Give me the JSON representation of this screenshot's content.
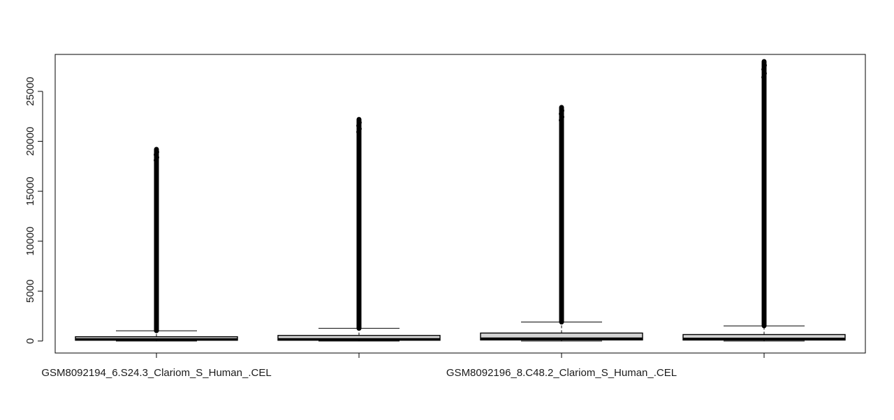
{
  "chart_data": {
    "type": "boxplot",
    "title": "",
    "xlabel": "",
    "ylabel": "",
    "ylim": [
      -1200,
      28700
    ],
    "yticks": [
      0,
      5000,
      10000,
      15000,
      20000,
      25000
    ],
    "ytick_labels": [
      "0",
      "5000",
      "10000",
      "15000",
      "20000",
      "25000"
    ],
    "x_labels_visible": [
      "GSM8092194_6.S24.3_Clariom_S_Human_.CEL",
      "",
      "GSM8092196_8.C48.2_Clariom_S_Human_.CEL",
      ""
    ],
    "grid": false,
    "legend": "none",
    "box_fill": "#d3d3d3",
    "line_color": "#000000",
    "boxes": [
      {
        "label": "GSM8092194_6.S24.3_Clariom_S_Human_.CEL",
        "whisker_low": 0,
        "q1": 80,
        "median": 180,
        "q3": 430,
        "whisker_high": 1030,
        "outlier_min": 1030,
        "outlier_max": 19200
      },
      {
        "label": "",
        "whisker_low": 0,
        "q1": 80,
        "median": 190,
        "q3": 560,
        "whisker_high": 1270,
        "outlier_min": 1270,
        "outlier_max": 22200
      },
      {
        "label": "GSM8092196_8.C48.2_Clariom_S_Human_.CEL",
        "whisker_low": 0,
        "q1": 110,
        "median": 250,
        "q3": 800,
        "whisker_high": 1900,
        "outlier_min": 1900,
        "outlier_max": 23400
      },
      {
        "label": "",
        "whisker_low": 0,
        "q1": 100,
        "median": 230,
        "q3": 650,
        "whisker_high": 1520,
        "outlier_min": 1520,
        "outlier_max": 28000
      }
    ]
  }
}
